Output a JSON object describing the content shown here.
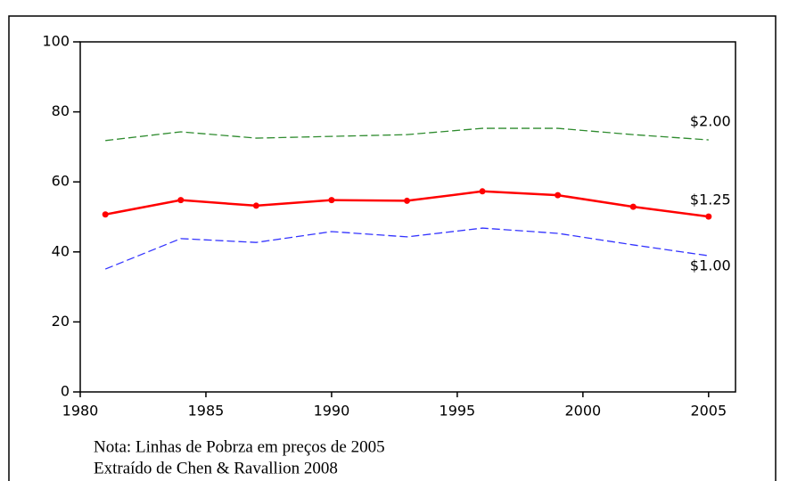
{
  "chart_data": {
    "type": "line",
    "x": [
      1981,
      1984,
      1987,
      1990,
      1993,
      1996,
      1999,
      2002,
      2005
    ],
    "series": [
      {
        "name": "$2.00",
        "color": "#2e8b2e",
        "style": "dashed",
        "markers": false,
        "values": [
          71.8,
          74.3,
          72.5,
          73.0,
          73.5,
          75.3,
          75.3,
          73.5,
          72.0
        ]
      },
      {
        "name": "$1.25",
        "color": "#ff0000",
        "style": "solid",
        "markers": true,
        "values": [
          50.7,
          54.8,
          53.2,
          54.8,
          54.6,
          57.3,
          56.2,
          52.9,
          50.1
        ]
      },
      {
        "name": "$1.00",
        "color": "#3333ff",
        "style": "dashed",
        "markers": false,
        "values": [
          35.1,
          43.8,
          42.7,
          45.8,
          44.3,
          46.8,
          45.3,
          42.0,
          38.9
        ]
      }
    ],
    "xlim": [
      1980,
      2006
    ],
    "xticks": [
      1980,
      1985,
      1990,
      1995,
      2000,
      2005
    ],
    "ylim": [
      0,
      100
    ],
    "yticks": [
      0,
      20,
      40,
      60,
      80,
      100
    ],
    "grid": false,
    "notes": [
      "Nota: Linhas de Pobrza em preços de 2005",
      "Extraído de Chen & Ravallion 2008"
    ]
  }
}
